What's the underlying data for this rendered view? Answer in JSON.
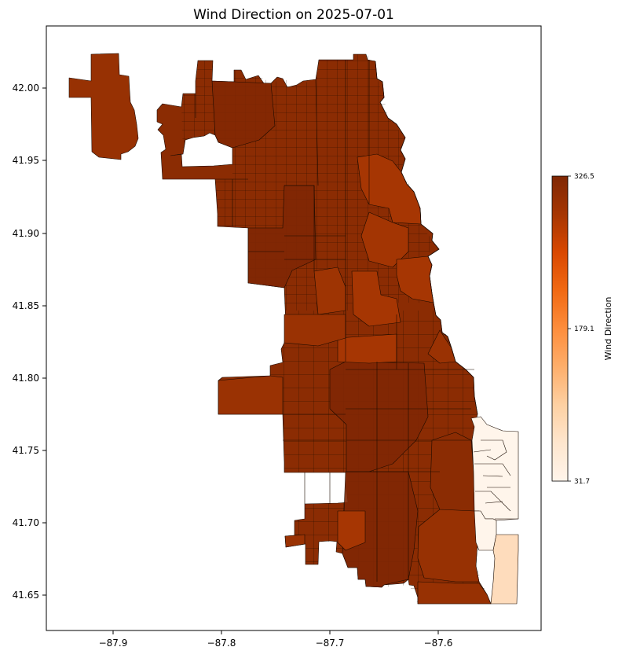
{
  "title": "Wind Direction on 2025-07-01",
  "map": {
    "x_ticks": [
      "−87.9",
      "−87.8",
      "−87.7",
      "−87.6"
    ],
    "y_ticks": [
      "42.00",
      "41.95",
      "41.90",
      "41.85",
      "41.80",
      "41.75",
      "41.70",
      "41.65"
    ],
    "lon_range": [
      -87.96,
      -87.502
    ],
    "lat_range": [
      41.626,
      42.044
    ]
  },
  "colorbar": {
    "label": "Wind Direction",
    "min": 31.7,
    "mid": 179.1,
    "max": 326.5,
    "min_label": "31.7",
    "mid_label": "179.1",
    "max_label": "326.5",
    "colormap": "Oranges",
    "colors": [
      "#fff5eb",
      "#fee6ce",
      "#fdd0a2",
      "#fdae6b",
      "#fd8d3c",
      "#f16913",
      "#d94801",
      "#a63603",
      "#7f2704"
    ]
  },
  "colors": {
    "darkest": "#7f2704",
    "dark": "#8b2c03",
    "mid_dark": "#9a3203",
    "orange_dark": "#a63603",
    "light": "#fff5eb",
    "peach": "#fedcbc"
  }
}
